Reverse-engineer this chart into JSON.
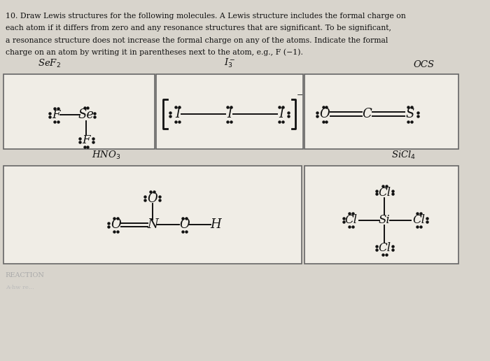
{
  "bg_color": "#d8d4cc",
  "box_color": "#f0ede6",
  "black": "#111111",
  "title_lines": [
    "10. Draw Lewis structures for the following molecules. A Lewis structure includes the formal charge on",
    "each atom if it differs from zero and any resonance structures that are significant. To be significant,",
    "a resonance structure does not increase the formal charge on any of the atoms. Indicate the formal",
    "charge on an atom by writing it in parentheses next to the atom, e.g., F (−1)."
  ],
  "box1_label": "SeF$_2$",
  "box2_label": "I$_3^-$",
  "box3_label": "OCS",
  "box4_label": "HNO$_3$",
  "box5_label": "SiCl$_4$"
}
